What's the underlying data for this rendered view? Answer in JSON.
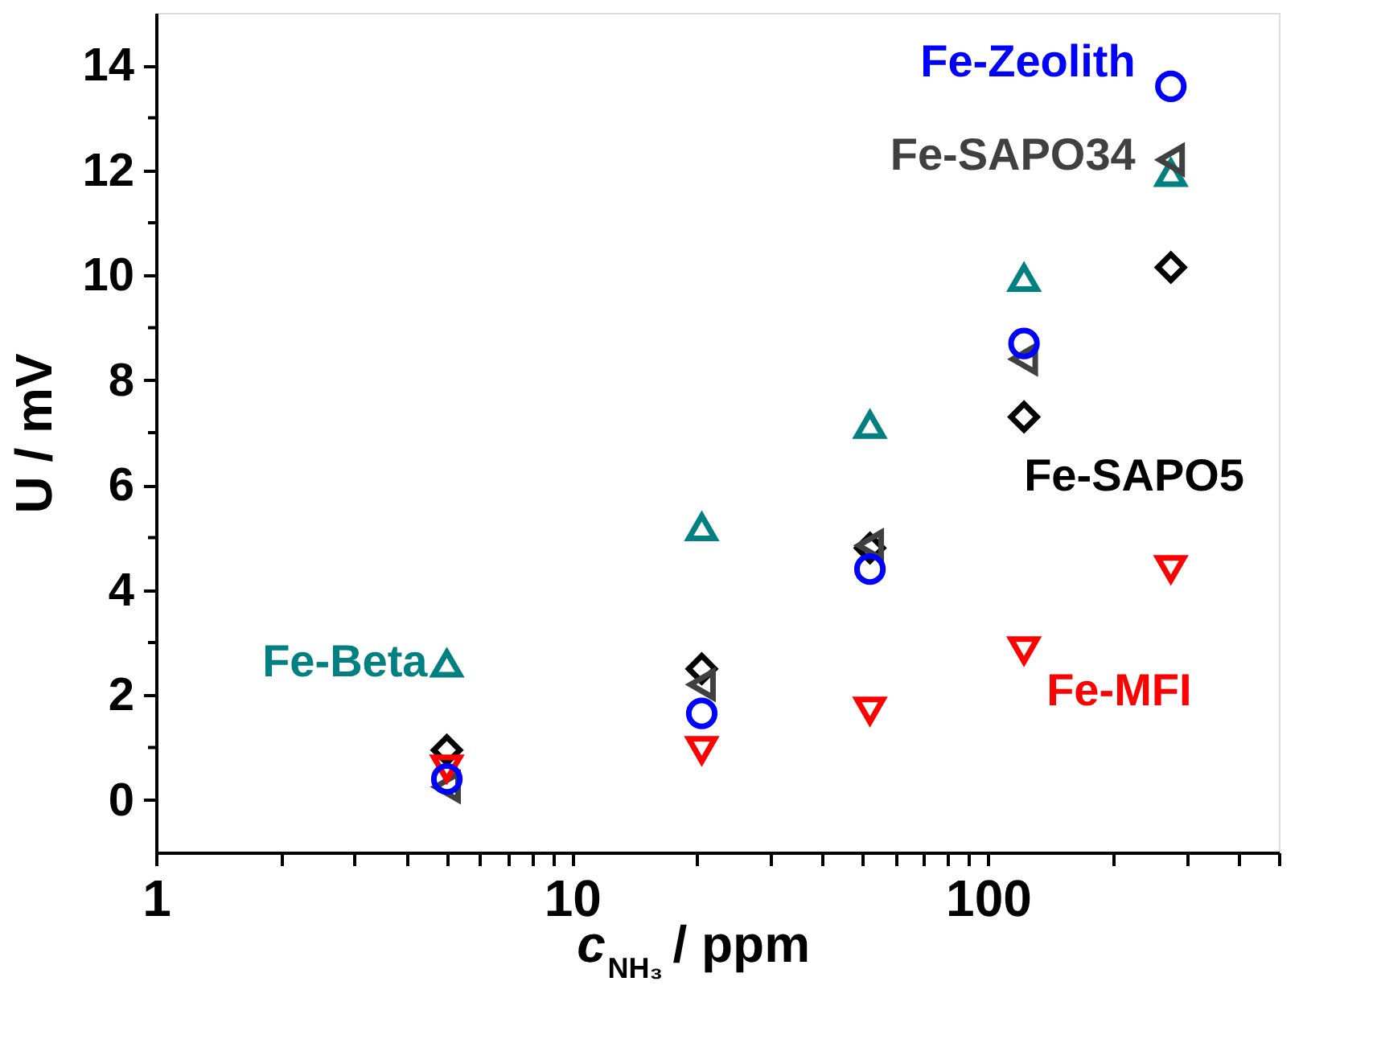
{
  "chart_data": {
    "type": "scatter",
    "xlabel": "c$_{NH₃}$ / ppm",
    "ylabel": "U / mV",
    "log": "x",
    "x": [
      5,
      20.5,
      52,
      122,
      275
    ],
    "xlim": [
      1,
      500
    ],
    "xticks": [
      1,
      {
        "value": 2,
        "label": null
      },
      {
        "value": 3,
        "label": null
      },
      {
        "value": 4,
        "label": null
      },
      {
        "value": 5,
        "label": null
      },
      {
        "value": 6,
        "label": null
      },
      {
        "value": 7,
        "label": null
      },
      {
        "value": 8,
        "label": null
      },
      {
        "value": 9,
        "label": null
      },
      10,
      {
        "value": 20,
        "label": null
      },
      {
        "value": 30,
        "label": null
      },
      {
        "value": 40,
        "label": null
      },
      {
        "value": 50,
        "label": null
      },
      {
        "value": 60,
        "label": null
      },
      {
        "value": 70,
        "label": null
      },
      {
        "value": 80,
        "label": null
      },
      {
        "value": 90,
        "label": null
      },
      100,
      {
        "value": 200,
        "label": null
      },
      {
        "value": 300,
        "label": null
      },
      {
        "value": 400,
        "label": null
      },
      {
        "value": 500,
        "label": null
      }
    ],
    "ylim": [
      -1,
      15
    ],
    "yticks": [
      0,
      {
        "value": 1,
        "label": null
      },
      2,
      {
        "value": 3,
        "label": null
      },
      4,
      {
        "value": 5,
        "label": null
      },
      6,
      {
        "value": 7,
        "label": null
      },
      8,
      {
        "value": 9,
        "label": null
      },
      10,
      {
        "value": 11,
        "label": null
      },
      12,
      {
        "value": 13,
        "label": null
      },
      14
    ],
    "grid": false,
    "legend": false,
    "series": [
      {
        "name": "Fe-Beta",
        "color": "#008080",
        "marker": "triangle-up",
        "values": [
          2.6,
          5.2,
          7.15,
          9.95,
          11.95
        ]
      },
      {
        "name": "Fe-Zeolith",
        "color": "#0000ff",
        "marker": "circle",
        "values": [
          0.4,
          1.65,
          4.4,
          8.7,
          13.6
        ]
      },
      {
        "name": "Fe-SAPO34",
        "color": "#404040",
        "marker": "triangle-left",
        "values": [
          0.25,
          2.2,
          4.85,
          8.4,
          12.2
        ]
      },
      {
        "name": "Fe-SAPO5",
        "color": "#000000",
        "marker": "diamond",
        "values": [
          0.95,
          2.5,
          4.8,
          7.3,
          10.15
        ]
      },
      {
        "name": "Fe-MFI",
        "color": "#ff0000",
        "marker": "triangle-down",
        "values": [
          0.6,
          0.95,
          1.7,
          2.85,
          4.4
        ]
      }
    ]
  }
}
